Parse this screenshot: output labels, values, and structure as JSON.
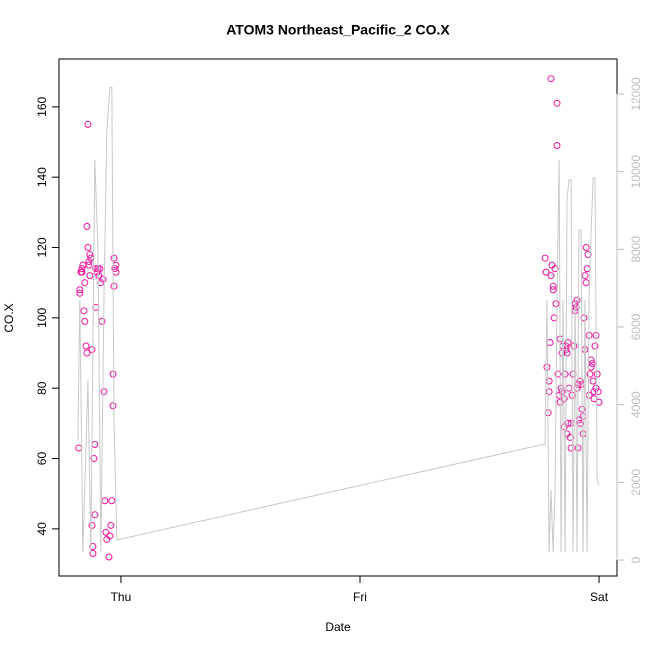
{
  "chart_data": {
    "type": "scatter",
    "title": "ATOM3 Northeast_Pacific_2 CO.X",
    "xlabel": "Date",
    "ylabel": "CO.X",
    "xlim": [
      -0.259,
      2.075
    ],
    "ylim": [
      26.6,
      173.6
    ],
    "y2lim": [
      -412,
      12901
    ],
    "xticks": [
      {
        "value": 0,
        "label": "Thu"
      },
      {
        "value": 1,
        "label": "Fri"
      },
      {
        "value": 2,
        "label": "Sat"
      }
    ],
    "yticks": [
      40,
      60,
      80,
      100,
      120,
      140,
      160
    ],
    "y2ticks": [
      0,
      2000,
      4000,
      6000,
      8000,
      10000,
      12000
    ],
    "series": [
      {
        "type": "scatter",
        "color": "#f2139f",
        "x": [
          -0.176,
          -0.172,
          -0.172,
          -0.167,
          -0.163,
          -0.163,
          -0.159,
          -0.155,
          -0.151,
          -0.151,
          -0.146,
          -0.142,
          -0.142,
          -0.138,
          -0.138,
          -0.134,
          -0.134,
          -0.13,
          -0.13,
          -0.126,
          -0.121,
          -0.121,
          -0.117,
          -0.117,
          -0.113,
          -0.109,
          -0.109,
          -0.105,
          -0.105,
          -0.1,
          -0.096,
          -0.092,
          -0.088,
          -0.084,
          -0.079,
          -0.075,
          -0.071,
          -0.067,
          -0.063,
          -0.059,
          -0.05,
          -0.046,
          -0.042,
          -0.038,
          -0.033,
          -0.033,
          -0.029,
          -0.029,
          -0.025,
          -0.021,
          -0.021,
          1.774,
          1.778,
          1.782,
          1.787,
          1.791,
          1.791,
          1.795,
          1.799,
          1.799,
          1.803,
          1.808,
          1.808,
          1.812,
          1.816,
          1.82,
          1.824,
          1.824,
          1.828,
          1.833,
          1.837,
          1.841,
          1.845,
          1.849,
          1.854,
          1.854,
          1.858,
          1.862,
          1.862,
          1.866,
          1.866,
          1.87,
          1.874,
          1.879,
          1.883,
          1.883,
          1.887,
          1.891,
          1.895,
          1.9,
          1.9,
          1.904,
          1.908,
          1.908,
          1.912,
          1.912,
          1.916,
          1.921,
          1.925,
          1.929,
          1.933,
          1.937,
          1.941,
          1.941,
          1.946,
          1.946,
          1.95,
          1.954,
          1.958,
          1.958,
          1.962,
          1.967,
          1.967,
          1.971,
          1.975,
          1.979,
          1.979,
          1.983,
          1.987,
          1.987,
          1.992,
          1.996,
          2.0,
          1.837,
          1.845,
          1.87,
          1.921,
          1.933
        ],
        "values": [
          63,
          108,
          107,
          113,
          114,
          113,
          115,
          102,
          99,
          110,
          92,
          126,
          90,
          155,
          120,
          116,
          115,
          118,
          112,
          117,
          41,
          91,
          35,
          33,
          60,
          44,
          64,
          114,
          103,
          113,
          114,
          112,
          114,
          110,
          99,
          111,
          79,
          48,
          39,
          37,
          32,
          38,
          41,
          48,
          84,
          75,
          109,
          117,
          114,
          113,
          115,
          117,
          113,
          86,
          73,
          79,
          82,
          93,
          168,
          112,
          115,
          109,
          108,
          100,
          114,
          104,
          161,
          149,
          84,
          78,
          76,
          80,
          79,
          92,
          77,
          69,
          84,
          92,
          91,
          90,
          67,
          93,
          80,
          66,
          63,
          70,
          78,
          84,
          92,
          104,
          102,
          103,
          105,
          80,
          81,
          63,
          71,
          82,
          81,
          74,
          67,
          100,
          91,
          112,
          110,
          120,
          114,
          118,
          95,
          78,
          84,
          88,
          86,
          87,
          82,
          79,
          77,
          92,
          95,
          80,
          84,
          79,
          76,
          94,
          90,
          70,
          70,
          72
        ]
      },
      {
        "type": "line",
        "axis": "y2",
        "color": "#c8c8c8",
        "x": [
          -0.18,
          -0.172,
          -0.159,
          -0.138,
          -0.126,
          -0.109,
          -0.096,
          -0.084,
          -0.071,
          -0.059,
          -0.046,
          -0.038,
          -0.029,
          -0.017,
          0.0,
          1.774,
          1.782,
          1.791,
          1.799,
          1.808,
          1.816,
          1.824,
          1.833,
          1.841,
          1.849,
          1.858,
          1.866,
          1.874,
          1.883,
          1.891,
          1.9,
          1.908,
          1.916,
          1.925,
          1.933,
          1.941,
          1.95,
          1.958,
          1.967,
          1.975,
          1.983,
          1.992,
          2.0
        ],
        "values": [
          3090,
          6696,
          206,
          4636,
          206,
          10301,
          7984,
          206,
          6696,
          11074,
          12156,
          12181,
          3605,
          515,
          541,
          2987,
          6696,
          206,
          1803,
          206,
          1854,
          6696,
          10301,
          206,
          6696,
          206,
          9271,
          9786,
          9786,
          206,
          6696,
          206,
          8499,
          8499,
          206,
          6696,
          206,
          6696,
          8499,
          9838,
          9838,
          2060,
          1931
        ]
      }
    ]
  }
}
